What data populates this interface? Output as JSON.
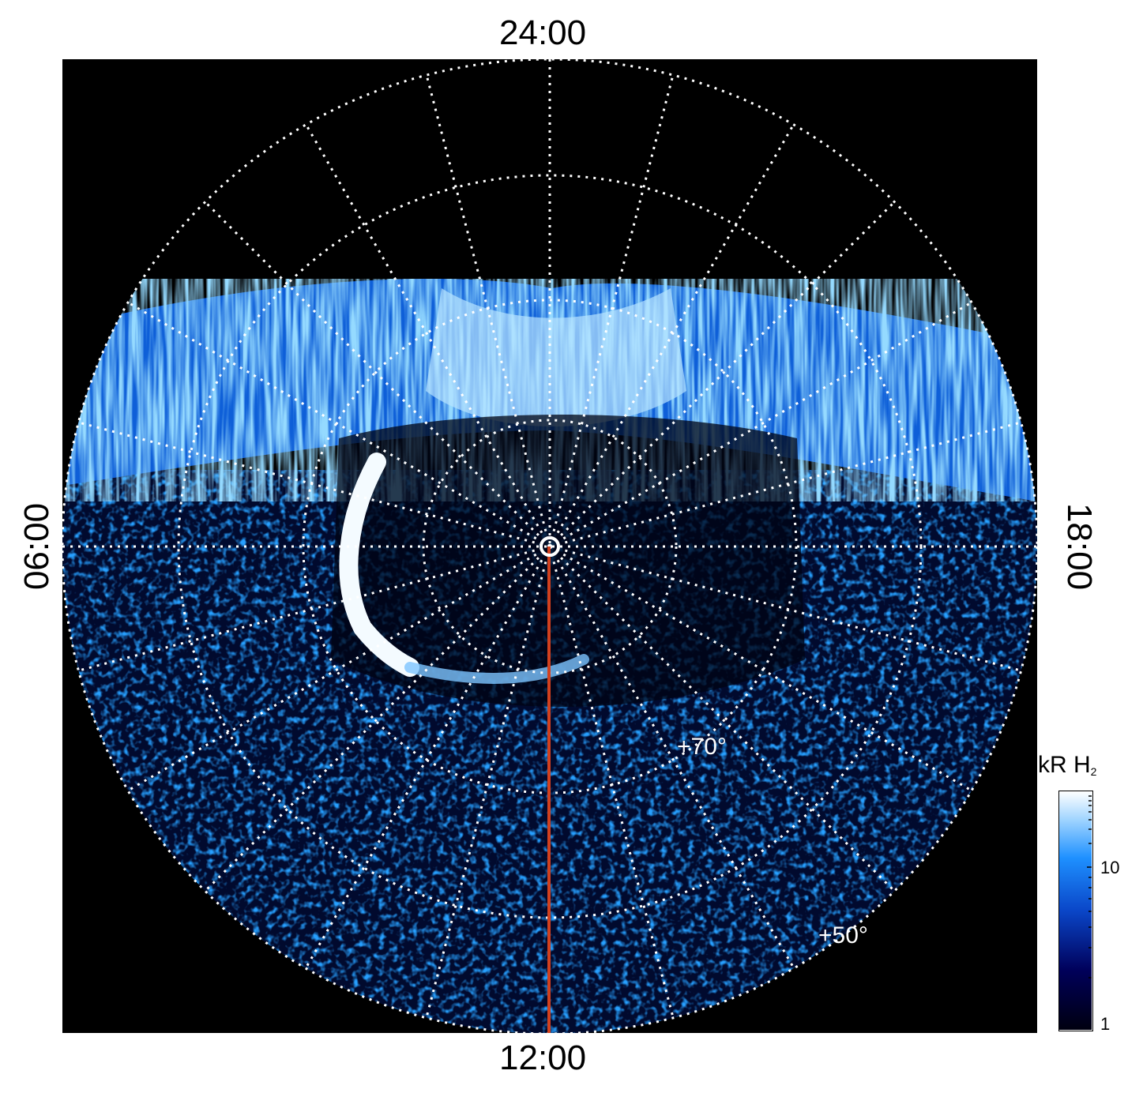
{
  "local_time_labels": {
    "top": "24:00",
    "bottom": "12:00",
    "left": "06:00",
    "right": "18:00"
  },
  "latitude_labels": {
    "inner": "+70°",
    "outer": "+50°"
  },
  "colorbar": {
    "title_main": "kR H",
    "title_sub": "2",
    "ticks": [
      "10",
      "1"
    ],
    "scale": "log",
    "colors": [
      "#000010",
      "#00005a",
      "#0a46c8",
      "#1e90ff",
      "#9fd4ff",
      "#ffffff"
    ]
  },
  "image": {
    "description_colors": {
      "background": "#000000",
      "grid": "#ffffff",
      "meridian_line": "#d2401e"
    }
  }
}
